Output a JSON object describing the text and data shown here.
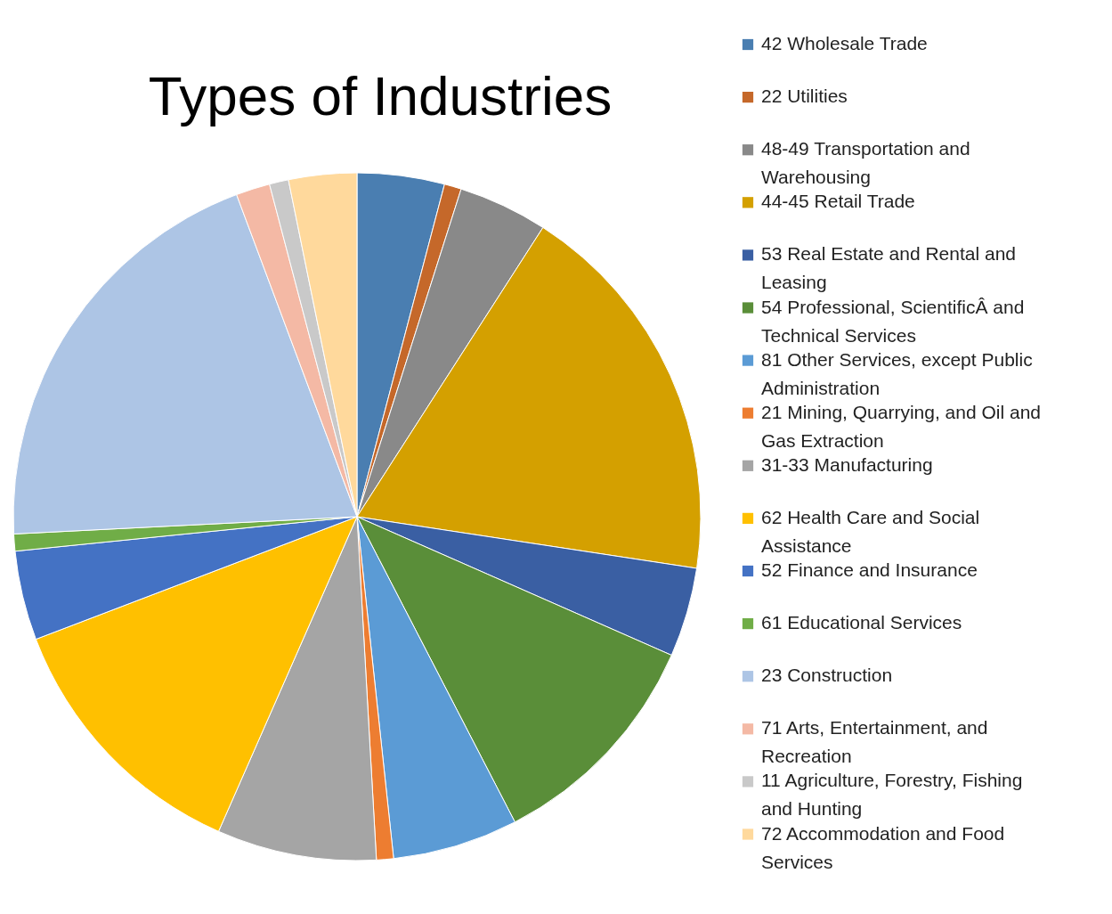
{
  "chart_data": {
    "type": "pie",
    "title": "Types  of Industries",
    "legend": "right",
    "categories": [
      "42 Wholesale Trade",
      "22 Utilities",
      "48-49 Transportation and Warehousing",
      "44-45 Retail Trade",
      "53 Real Estate and Rental and Leasing",
      "54 Professional, ScientificÂ and Technical Services",
      "81 Other Services, except Public Administration",
      "21 Mining, Quarrying, and Oil and Gas Extraction",
      "31-33 Manufacturing",
      "62 Health Care and Social Assistance",
      "52 Finance and Insurance",
      "61 Educational Services",
      "23 Construction",
      "71 Arts, Entertainment, and Recreation",
      "11 Agriculture, Forestry, Fishing and Hunting",
      "72 Accommodation and Food Services"
    ],
    "values": [
      4.1,
      0.8,
      4.2,
      18.3,
      4.2,
      10.8,
      5.9,
      0.8,
      7.5,
      12.6,
      4.2,
      0.8,
      20.1,
      1.6,
      0.9,
      3.2
    ],
    "colors": [
      "#4a7eb1",
      "#c5682a",
      "#898989",
      "#d4a000",
      "#3a5fa3",
      "#5a8e39",
      "#5b9bd5",
      "#ed7d31",
      "#a5a5a5",
      "#ffc000",
      "#4472c4",
      "#70ad47",
      "#adc5e5",
      "#f4b9a5",
      "#c9c9c9",
      "#ffd99c"
    ]
  }
}
